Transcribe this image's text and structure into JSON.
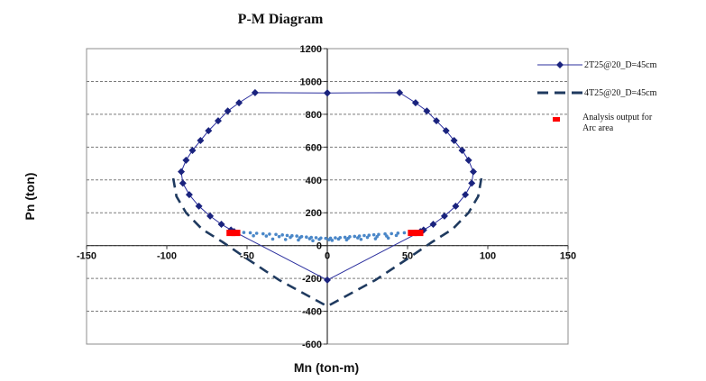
{
  "chart_data": {
    "type": "scatter",
    "title": "P-M Diagram",
    "xlabel": "Mn (ton-m)",
    "ylabel": "Pn (ton)",
    "xlim": [
      -150,
      150
    ],
    "ylim": [
      -600,
      1200
    ],
    "xticks": [
      -150,
      -100,
      -50,
      0,
      50,
      100,
      150
    ],
    "yticks": [
      -600,
      -400,
      -200,
      0,
      200,
      400,
      600,
      800,
      1000,
      1200
    ],
    "grid": "horizontal",
    "legend_position": "right",
    "series": [
      {
        "name": "2T25@20_D=45cm",
        "style": "line-diamond",
        "color": "#2b2f9e",
        "marker_color": "#1a237e",
        "x": [
          0,
          45,
          55,
          62,
          68,
          74,
          79,
          84,
          88,
          91,
          90,
          86,
          80,
          73,
          66,
          60,
          58,
          0,
          -58,
          -60,
          -66,
          -73,
          -80,
          -86,
          -90,
          -91,
          -88,
          -84,
          -79,
          -74,
          -68,
          -62,
          -55,
          -45,
          0
        ],
        "y": [
          930,
          932,
          870,
          820,
          760,
          700,
          640,
          580,
          520,
          450,
          380,
          310,
          240,
          180,
          130,
          95,
          85,
          -210,
          85,
          95,
          130,
          180,
          240,
          310,
          380,
          450,
          520,
          580,
          640,
          700,
          760,
          820,
          870,
          932,
          930
        ]
      },
      {
        "name": "4T25@20_D=45cm",
        "style": "dashed-line",
        "color": "#1f3a5f",
        "x": [
          96,
          94,
          88,
          78,
          65,
          50,
          30,
          0,
          -30,
          -50,
          -65,
          -78,
          -88,
          -94,
          -96
        ],
        "y": [
          410,
          300,
          200,
          100,
          20,
          -80,
          -210,
          -370,
          -210,
          -80,
          20,
          100,
          200,
          300,
          410
        ]
      },
      {
        "name": "Analysis output for Arc area",
        "style": "square-marker",
        "color": "#ff0000",
        "x": [
          -60,
          -57,
          53,
          57
        ],
        "y": [
          80,
          80,
          80,
          80
        ]
      },
      {
        "name": "",
        "style": "dots",
        "color": "#4a87c8",
        "x": [
          -52,
          -48,
          -44,
          -40,
          -36,
          -32,
          -28,
          -25,
          -22,
          -19,
          -16,
          -13,
          -10,
          -7,
          -4,
          -1,
          2,
          5,
          8,
          11,
          14,
          17,
          20,
          23,
          26,
          29,
          32,
          36,
          40,
          44,
          48,
          -46,
          -38,
          -30,
          -23,
          -17,
          -11,
          -5,
          1,
          7,
          13,
          19,
          25,
          31,
          37,
          43,
          -34,
          -26,
          -18,
          -9,
          3,
          12,
          21,
          30,
          38
        ],
        "y": [
          80,
          78,
          75,
          72,
          70,
          68,
          65,
          62,
          60,
          58,
          55,
          52,
          50,
          48,
          46,
          44,
          45,
          47,
          49,
          51,
          54,
          56,
          58,
          61,
          63,
          66,
          68,
          71,
          73,
          76,
          78,
          60,
          58,
          55,
          50,
          48,
          42,
          38,
          36,
          40,
          44,
          47,
          50,
          55,
          58,
          62,
          40,
          37,
          34,
          30,
          32,
          35,
          38,
          42,
          46
        ]
      }
    ]
  }
}
